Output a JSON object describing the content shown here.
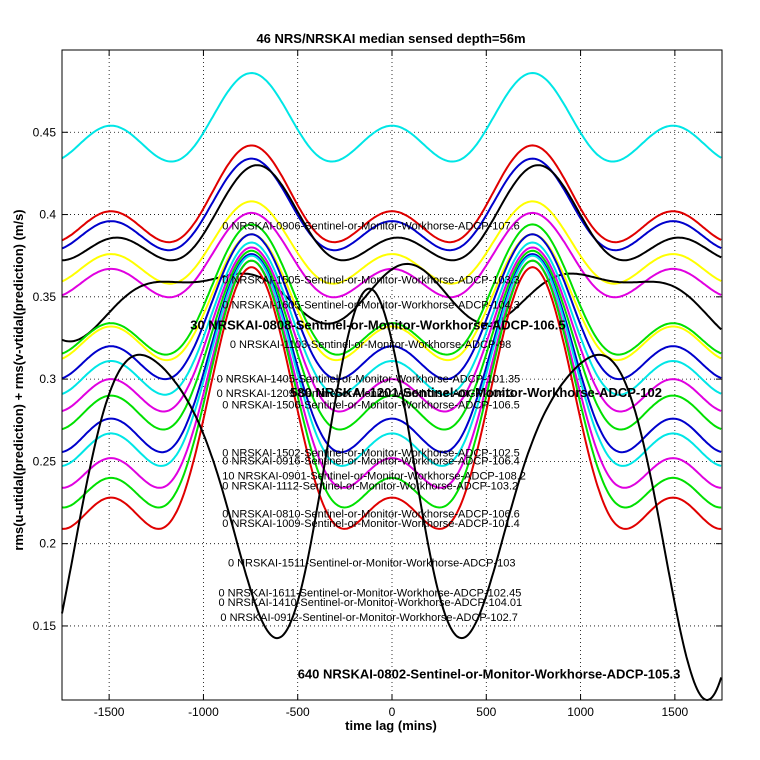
{
  "chart_data": {
    "type": "line",
    "title": "46 NRS/NRSKAI median sensed depth=56m",
    "xlabel": "time lag (mins)",
    "ylabel": "rms(u-utidal(prediction) + rms(v-vtidal(prediction) (m/s)",
    "xlim": [
      -1750,
      1750
    ],
    "ylim": [
      0.105,
      0.5
    ],
    "xticks": [
      -1500,
      -1000,
      -500,
      0,
      500,
      1000,
      1500
    ],
    "yticks": [
      0.15,
      0.2,
      0.25,
      0.3,
      0.35,
      0.4,
      0.45
    ],
    "grid": true,
    "series": [
      {
        "name": "cyan-top",
        "color": "#00e6e6",
        "offset": 0.452,
        "a12": 0.018,
        "a24": 0.016,
        "a2": 0.0,
        "phi": 0
      },
      {
        "name": "red-1",
        "color": "#e00000",
        "offset": 0.404,
        "a12": 0.018,
        "a24": 0.02,
        "a2": 0.0,
        "phi": 0
      },
      {
        "name": "blue-1",
        "color": "#0000cc",
        "offset": 0.398,
        "a12": 0.017,
        "a24": 0.019,
        "a2": 0.0,
        "phi": 0
      },
      {
        "name": "black-1",
        "color": "#000000",
        "offset": 0.392,
        "a12": 0.016,
        "a24": 0.022,
        "a2": 0.0,
        "phi": 30
      },
      {
        "name": "yellow-1",
        "color": "#ffff00",
        "offset": 0.376,
        "a12": 0.016,
        "a24": 0.016,
        "a2": 0.0,
        "phi": 0
      },
      {
        "name": "magenta-1",
        "color": "#e000e0",
        "offset": 0.368,
        "a12": 0.016,
        "a24": 0.017,
        "a2": 0.0,
        "phi": 0
      },
      {
        "name": "black-2",
        "color": "#000000",
        "offset": 0.352,
        "a12": 0.01,
        "a24": 0.01,
        "a2": 0.018,
        "phi": 80
      },
      {
        "name": "green-1",
        "color": "#00e000",
        "offset": 0.342,
        "a12": 0.022,
        "a24": 0.03,
        "a2": 0.0,
        "phi": 0
      },
      {
        "name": "yellow-2",
        "color": "#ffff00",
        "offset": 0.338,
        "a12": 0.022,
        "a24": 0.028,
        "a2": 0.0,
        "phi": 0
      },
      {
        "name": "blue-2",
        "color": "#0000cc",
        "offset": 0.33,
        "a12": 0.024,
        "a24": 0.034,
        "a2": 0.0,
        "phi": 0
      },
      {
        "name": "cyan-2",
        "color": "#00e6e6",
        "offset": 0.322,
        "a12": 0.025,
        "a24": 0.036,
        "a2": 0.0,
        "phi": 0
      },
      {
        "name": "magenta-2",
        "color": "#e000e0",
        "offset": 0.314,
        "a12": 0.026,
        "a24": 0.04,
        "a2": 0.0,
        "phi": 0
      },
      {
        "name": "green-2",
        "color": "#00e000",
        "offset": 0.306,
        "a12": 0.028,
        "a24": 0.044,
        "a2": 0.0,
        "phi": 0
      },
      {
        "name": "blue-3",
        "color": "#0000cc",
        "offset": 0.296,
        "a12": 0.03,
        "a24": 0.05,
        "a2": 0.0,
        "phi": 0
      },
      {
        "name": "cyan-3",
        "color": "#00e6e6",
        "offset": 0.29,
        "a12": 0.031,
        "a24": 0.054,
        "a2": 0.0,
        "phi": 0
      },
      {
        "name": "magenta-3",
        "color": "#e000e0",
        "offset": 0.28,
        "a12": 0.032,
        "a24": 0.06,
        "a2": 0.0,
        "phi": 0
      },
      {
        "name": "green-3",
        "color": "#00e000",
        "offset": 0.272,
        "a12": 0.034,
        "a24": 0.066,
        "a2": 0.0,
        "phi": 0
      },
      {
        "name": "red-2",
        "color": "#e00000",
        "offset": 0.262,
        "a12": 0.036,
        "a24": 0.07,
        "a2": 0.0,
        "phi": 0
      },
      {
        "name": "black-3",
        "color": "#000000",
        "offset": 0.24,
        "a12": 0.03,
        "a24": 0.02,
        "a2": 0.105,
        "phi": -120
      }
    ],
    "annotations": [
      {
        "text": "0 NRSKAI-0906-Sentinel-or-Monitor-Workhorse-ADCP-107.6",
        "x": -900,
        "y": 0.391,
        "style": "small"
      },
      {
        "text": "0 NRSKAI-1505-Sentinel-or-Monitor-Workhorse-ADCP-103.3",
        "x": -900,
        "y": 0.358,
        "style": "small"
      },
      {
        "text": "0 NRSKAI-1605-Sentinel-or-Monitor-Workhorse-ADCP-104.3",
        "x": -900,
        "y": 0.343,
        "style": "small"
      },
      {
        "text": "30 NRSKAI-0808-Sentinel-or-Monitor-Workhorse-ADCP-106.5",
        "x": -1070,
        "y": 0.33,
        "style": "bold"
      },
      {
        "text": "0 NRSKAI-1103-Sentinel-or-Monitor-Workhorse-ADCP-98",
        "x": -860,
        "y": 0.319,
        "style": "small"
      },
      {
        "text": "0 NRSKAI-1405-Sentinel-or-Monitor-Workhorse-ADCP-101.35",
        "x": -930,
        "y": 0.298,
        "style": "small"
      },
      {
        "text": "580 NRSKAI-1201-Sentinel-or-Monitor-Workhorse-ADCP-102",
        "x": -540,
        "y": 0.289,
        "style": "bold"
      },
      {
        "text": "0 NRSKAI-1209-Sentinel-or-Monitor-Workhorse-ADCP-104.3",
        "x": -930,
        "y": 0.289,
        "style": "small"
      },
      {
        "text": "0 NRSKAI-1506-Sentinel-or-Monitor-Workhorse-ADCP-106.5",
        "x": -900,
        "y": 0.282,
        "style": "small"
      },
      {
        "text": "0 NRSKAI-1502-Sentinel-or-Monitor-Workhorse-ADCP-102.5",
        "x": -900,
        "y": 0.253,
        "style": "small"
      },
      {
        "text": "0 NRSKAI-0916-Sentinel-or-Monitor-Workhorse-ADCP-106.4",
        "x": -900,
        "y": 0.248,
        "style": "small"
      },
      {
        "text": "10 NRSKAI-0901-Sentinel-or-Monitor-Workhorse-ADCP-108.2",
        "x": -900,
        "y": 0.239,
        "style": "small"
      },
      {
        "text": "0 NRSKAI-1112-Sentinel-or-Monitor-Workhorse-ADCP-103.2",
        "x": -900,
        "y": 0.233,
        "style": "small"
      },
      {
        "text": "0 NRSKAI-0810-Sentinel-or-Monitor-Workhorse-ADCP-106.6",
        "x": -900,
        "y": 0.216,
        "style": "small"
      },
      {
        "text": "0 NRSKAI-1009-Sentinel-or-Monitor-Workhorse-ADCP-101.4",
        "x": -900,
        "y": 0.21,
        "style": "small"
      },
      {
        "text": "0 NRSKAI-1511-Sentinel-or-Monitor-Workhorse-ADCP-103",
        "x": -870,
        "y": 0.186,
        "style": "small"
      },
      {
        "text": "0 NRSKAI-1611-Sentinel-or-Monitor-Workhorse-ADCP-102.45",
        "x": -920,
        "y": 0.168,
        "style": "small"
      },
      {
        "text": "0 NRSKAI-1410-Sentinel-or-Monitor-Workhorse-ADCP-104.01",
        "x": -920,
        "y": 0.162,
        "style": "small"
      },
      {
        "text": "0 NRSKAI-0912-Sentinel-or-Monitor-Workhorse-ADCP-102.7",
        "x": -910,
        "y": 0.153,
        "style": "small"
      },
      {
        "text": "640 NRSKAI-0802-Sentinel-or-Monitor-Workhorse-ADCP-105.3",
        "x": -500,
        "y": 0.118,
        "style": "bold"
      }
    ]
  }
}
